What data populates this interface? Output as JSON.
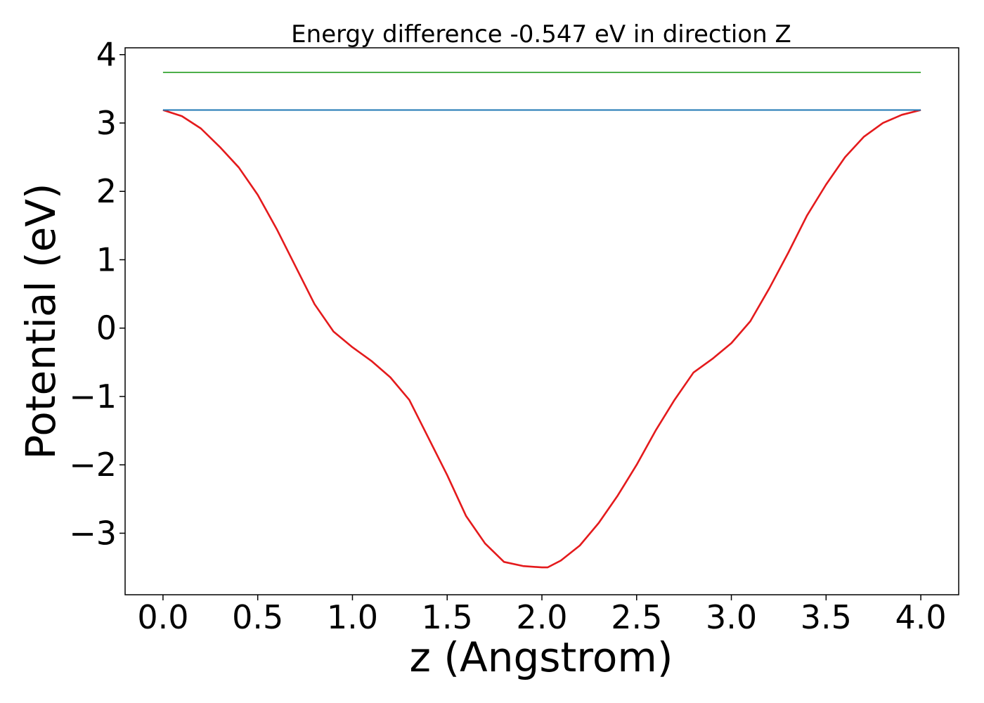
{
  "chart_data": {
    "type": "line",
    "title": "Energy difference -0.547 eV in direction Z",
    "xlabel": "z (Angstrom)",
    "ylabel": "Potential (eV)",
    "xlim": [
      -0.2,
      4.2
    ],
    "ylim": [
      -3.9,
      4.1
    ],
    "x_ticks": [
      0.0,
      0.5,
      1.0,
      1.5,
      2.0,
      2.5,
      3.0,
      3.5,
      4.0
    ],
    "x_tick_labels": [
      "0.0",
      "0.5",
      "1.0",
      "1.5",
      "2.0",
      "2.5",
      "3.0",
      "3.5",
      "4.0"
    ],
    "y_ticks": [
      -3,
      -2,
      -1,
      0,
      1,
      2,
      3,
      4
    ],
    "y_tick_labels": [
      "−3",
      "−2",
      "−1",
      "0",
      "1",
      "2",
      "3",
      "4"
    ],
    "grid": false,
    "series": [
      {
        "name": "potential",
        "color": "#e41a1c",
        "x": [
          0.0,
          0.1,
          0.2,
          0.3,
          0.4,
          0.5,
          0.6,
          0.7,
          0.8,
          0.9,
          1.0,
          1.1,
          1.2,
          1.3,
          1.4,
          1.5,
          1.6,
          1.7,
          1.8,
          1.9,
          2.0,
          2.03,
          2.1,
          2.2,
          2.3,
          2.4,
          2.5,
          2.6,
          2.7,
          2.8,
          2.9,
          3.0,
          3.1,
          3.2,
          3.3,
          3.4,
          3.5,
          3.6,
          3.7,
          3.8,
          3.9,
          4.0
        ],
        "y": [
          3.19,
          3.1,
          2.92,
          2.65,
          2.35,
          1.95,
          1.45,
          0.9,
          0.35,
          -0.05,
          -0.28,
          -0.48,
          -0.72,
          -1.05,
          -1.6,
          -2.15,
          -2.75,
          -3.15,
          -3.42,
          -3.48,
          -3.5,
          -3.5,
          -3.4,
          -3.18,
          -2.85,
          -2.45,
          -2.0,
          -1.5,
          -1.05,
          -0.65,
          -0.45,
          -0.22,
          0.1,
          0.58,
          1.1,
          1.65,
          2.1,
          2.5,
          2.8,
          3.0,
          3.12,
          3.19
        ]
      },
      {
        "name": "reference-level-blue",
        "color": "#1f77b4",
        "x": [
          0.0,
          4.0
        ],
        "y": [
          3.19,
          3.19
        ]
      },
      {
        "name": "reference-level-green",
        "color": "#4daf4a",
        "x": [
          0.0,
          4.0
        ],
        "y": [
          3.74,
          3.74
        ]
      }
    ]
  }
}
